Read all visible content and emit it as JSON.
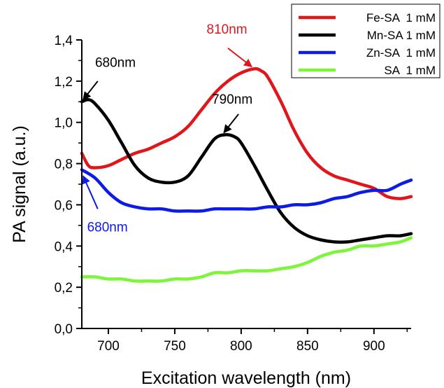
{
  "chart_data": {
    "type": "line",
    "xlabel": "Excitation wavelength (nm)",
    "ylabel": "PA signal (a.u.)",
    "xlim": [
      680,
      928
    ],
    "ylim": [
      0.0,
      1.4
    ],
    "x_ticks": [
      700,
      750,
      800,
      850,
      900
    ],
    "x_tick_labels": [
      "700",
      "750",
      "800",
      "850",
      "900"
    ],
    "y_ticks": [
      0.0,
      0.2,
      0.4,
      0.6,
      0.8,
      1.0,
      1.2,
      1.4
    ],
    "y_tick_labels": [
      "0,0",
      "0,2",
      "0,4",
      "0,6",
      "0,8",
      "1,0",
      "1,2",
      "1,4"
    ],
    "grid": false,
    "legend_position": "top-right",
    "series": [
      {
        "name": "Fe-SA  1 mM",
        "color": "#e0161b",
        "points": [
          [
            680,
            0.85
          ],
          [
            685,
            0.79
          ],
          [
            690,
            0.78
          ],
          [
            700,
            0.79
          ],
          [
            710,
            0.82
          ],
          [
            720,
            0.85
          ],
          [
            730,
            0.87
          ],
          [
            740,
            0.9
          ],
          [
            750,
            0.93
          ],
          [
            760,
            0.98
          ],
          [
            770,
            1.06
          ],
          [
            780,
            1.14
          ],
          [
            790,
            1.2
          ],
          [
            800,
            1.24
          ],
          [
            810,
            1.26
          ],
          [
            815,
            1.25
          ],
          [
            820,
            1.22
          ],
          [
            830,
            1.1
          ],
          [
            840,
            0.96
          ],
          [
            850,
            0.85
          ],
          [
            860,
            0.78
          ],
          [
            870,
            0.74
          ],
          [
            880,
            0.72
          ],
          [
            890,
            0.7
          ],
          [
            900,
            0.68
          ],
          [
            910,
            0.64
          ],
          [
            920,
            0.63
          ],
          [
            928,
            0.64
          ]
        ]
      },
      {
        "name": "Mn-SA 1 mM",
        "color": "#000000",
        "points": [
          [
            680,
            1.1
          ],
          [
            685,
            1.11
          ],
          [
            690,
            1.09
          ],
          [
            700,
            1.01
          ],
          [
            710,
            0.9
          ],
          [
            720,
            0.79
          ],
          [
            730,
            0.73
          ],
          [
            740,
            0.71
          ],
          [
            750,
            0.71
          ],
          [
            760,
            0.74
          ],
          [
            770,
            0.83
          ],
          [
            780,
            0.92
          ],
          [
            788,
            0.94
          ],
          [
            795,
            0.93
          ],
          [
            800,
            0.9
          ],
          [
            810,
            0.79
          ],
          [
            820,
            0.67
          ],
          [
            830,
            0.56
          ],
          [
            840,
            0.49
          ],
          [
            850,
            0.45
          ],
          [
            860,
            0.43
          ],
          [
            870,
            0.42
          ],
          [
            880,
            0.42
          ],
          [
            890,
            0.43
          ],
          [
            900,
            0.44
          ],
          [
            910,
            0.45
          ],
          [
            920,
            0.45
          ],
          [
            928,
            0.46
          ]
        ]
      },
      {
        "name": "Zn-SA  1 mM",
        "color": "#0c1be6",
        "points": [
          [
            680,
            0.77
          ],
          [
            690,
            0.73
          ],
          [
            700,
            0.66
          ],
          [
            710,
            0.61
          ],
          [
            720,
            0.59
          ],
          [
            730,
            0.58
          ],
          [
            740,
            0.58
          ],
          [
            750,
            0.57
          ],
          [
            760,
            0.57
          ],
          [
            770,
            0.57
          ],
          [
            780,
            0.58
          ],
          [
            790,
            0.58
          ],
          [
            800,
            0.58
          ],
          [
            810,
            0.58
          ],
          [
            820,
            0.59
          ],
          [
            830,
            0.59
          ],
          [
            840,
            0.6
          ],
          [
            850,
            0.6
          ],
          [
            860,
            0.61
          ],
          [
            870,
            0.63
          ],
          [
            880,
            0.64
          ],
          [
            890,
            0.66
          ],
          [
            900,
            0.67
          ],
          [
            910,
            0.67
          ],
          [
            920,
            0.7
          ],
          [
            928,
            0.72
          ]
        ]
      },
      {
        "name": "SA  1 mM",
        "color": "#7cf53a",
        "points": [
          [
            680,
            0.25
          ],
          [
            690,
            0.25
          ],
          [
            700,
            0.24
          ],
          [
            710,
            0.24
          ],
          [
            720,
            0.23
          ],
          [
            730,
            0.23
          ],
          [
            740,
            0.23
          ],
          [
            750,
            0.24
          ],
          [
            760,
            0.24
          ],
          [
            770,
            0.25
          ],
          [
            780,
            0.27
          ],
          [
            790,
            0.27
          ],
          [
            800,
            0.28
          ],
          [
            810,
            0.28
          ],
          [
            820,
            0.28
          ],
          [
            830,
            0.29
          ],
          [
            840,
            0.3
          ],
          [
            850,
            0.32
          ],
          [
            860,
            0.35
          ],
          [
            870,
            0.37
          ],
          [
            880,
            0.38
          ],
          [
            890,
            0.4
          ],
          [
            900,
            0.4
          ],
          [
            910,
            0.41
          ],
          [
            920,
            0.42
          ],
          [
            928,
            0.44
          ]
        ]
      }
    ],
    "annotations": [
      {
        "text": "810nm",
        "color": "#e0161b",
        "label_at": [
          774,
          1.43
        ],
        "arrow_from": [
          790,
          1.36
        ],
        "arrow_to": [
          808,
          1.27
        ]
      },
      {
        "text": "680nm",
        "color": "#000000",
        "label_at": [
          690,
          1.27
        ],
        "arrow_from": [
          692,
          1.2
        ],
        "arrow_to": [
          681,
          1.11
        ]
      },
      {
        "text": "790nm",
        "color": "#000000",
        "label_at": [
          778,
          1.09
        ],
        "arrow_from": [
          798,
          1.04
        ],
        "arrow_to": [
          787,
          0.95
        ]
      },
      {
        "text": "680nm",
        "color": "#0c1be6",
        "label_at": [
          684,
          0.47
        ],
        "arrow_from": [
          692,
          0.58
        ],
        "arrow_to": [
          681,
          0.74
        ]
      }
    ]
  }
}
